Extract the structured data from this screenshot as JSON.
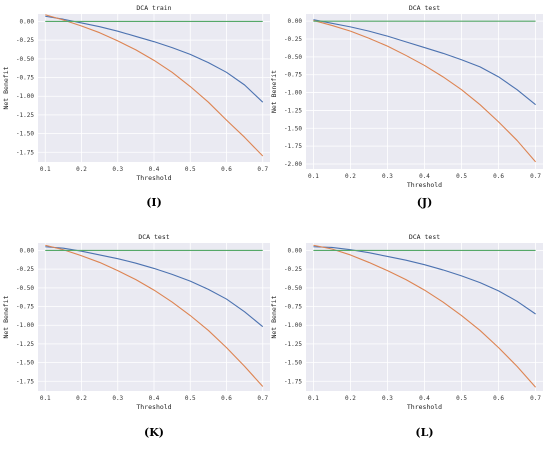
{
  "colors": {
    "background": "#eaeaf2",
    "grid": "#ffffff",
    "model": "#4c72b0",
    "treat_all": "#dd8452",
    "treat_none": "#55a868"
  },
  "chart_data": [
    {
      "type": "line",
      "panel": "(I)",
      "title": "DCA train",
      "xlabel": "Threshold",
      "ylabel": "Net Benefit",
      "xlim": [
        0.08,
        0.72
      ],
      "ylim": [
        -1.88,
        0.1
      ],
      "xticks": [
        "0.1",
        "0.2",
        "0.3",
        "0.4",
        "0.5",
        "0.6",
        "0.7"
      ],
      "yticks": [
        "0.00",
        "-0.25",
        "-0.50",
        "-0.75",
        "-1.00",
        "-1.25",
        "-1.50",
        "-1.75"
      ],
      "grid": true,
      "series": [
        {
          "color": "#4c72b0",
          "x": [
            0.1,
            0.15,
            0.2,
            0.25,
            0.3,
            0.35,
            0.4,
            0.45,
            0.5,
            0.55,
            0.6,
            0.65,
            0.7
          ],
          "y": [
            0.07,
            0.03,
            -0.02,
            -0.07,
            -0.13,
            -0.2,
            -0.27,
            -0.35,
            -0.44,
            -0.55,
            -0.68,
            -0.85,
            -1.08
          ]
        },
        {
          "color": "#dd8452",
          "x": [
            0.1,
            0.15,
            0.2,
            0.25,
            0.3,
            0.35,
            0.4,
            0.45,
            0.5,
            0.55,
            0.6,
            0.65,
            0.7
          ],
          "y": [
            0.09,
            0.02,
            -0.06,
            -0.15,
            -0.26,
            -0.38,
            -0.52,
            -0.68,
            -0.87,
            -1.08,
            -1.32,
            -1.55,
            -1.8
          ]
        },
        {
          "color": "#55a868",
          "x": [
            0.1,
            0.7
          ],
          "y": [
            0,
            0
          ]
        }
      ]
    },
    {
      "type": "line",
      "panel": "(J)",
      "title": "DCA test",
      "xlabel": "Threshold",
      "ylabel": "Net Benefit",
      "xlim": [
        0.08,
        0.72
      ],
      "ylim": [
        -2.07,
        0.1
      ],
      "xticks": [
        "0.1",
        "0.2",
        "0.3",
        "0.4",
        "0.5",
        "0.6",
        "0.7"
      ],
      "yticks": [
        "0.00",
        "-0.25",
        "-0.50",
        "-0.75",
        "-1.00",
        "-1.25",
        "-1.50",
        "-1.75",
        "-2.00"
      ],
      "grid": true,
      "series": [
        {
          "color": "#4c72b0",
          "x": [
            0.1,
            0.15,
            0.2,
            0.25,
            0.3,
            0.35,
            0.4,
            0.45,
            0.5,
            0.55,
            0.6,
            0.65,
            0.7
          ],
          "y": [
            0.02,
            -0.03,
            -0.08,
            -0.14,
            -0.21,
            -0.29,
            -0.37,
            -0.45,
            -0.54,
            -0.64,
            -0.78,
            -0.96,
            -1.17
          ]
        },
        {
          "color": "#dd8452",
          "x": [
            0.1,
            0.15,
            0.2,
            0.25,
            0.3,
            0.35,
            0.4,
            0.45,
            0.5,
            0.55,
            0.6,
            0.65,
            0.7
          ],
          "y": [
            0.01,
            -0.06,
            -0.14,
            -0.24,
            -0.35,
            -0.48,
            -0.62,
            -0.78,
            -0.96,
            -1.17,
            -1.41,
            -1.67,
            -1.97
          ]
        },
        {
          "color": "#55a868",
          "x": [
            0.1,
            0.7
          ],
          "y": [
            0,
            0
          ]
        }
      ]
    },
    {
      "type": "line",
      "panel": "(K)",
      "title": "DCA test",
      "xlabel": "Threshold",
      "ylabel": "Net Benefit",
      "xlim": [
        0.08,
        0.72
      ],
      "ylim": [
        -1.88,
        0.1
      ],
      "xticks": [
        "0.1",
        "0.2",
        "0.3",
        "0.4",
        "0.5",
        "0.6",
        "0.7"
      ],
      "yticks": [
        "0.00",
        "-0.25",
        "-0.50",
        "-0.75",
        "-1.00",
        "-1.25",
        "-1.50",
        "-1.75"
      ],
      "grid": true,
      "series": [
        {
          "color": "#4c72b0",
          "x": [
            0.1,
            0.15,
            0.2,
            0.25,
            0.3,
            0.35,
            0.4,
            0.45,
            0.5,
            0.55,
            0.6,
            0.65,
            0.7
          ],
          "y": [
            0.05,
            0.03,
            -0.01,
            -0.06,
            -0.11,
            -0.17,
            -0.24,
            -0.32,
            -0.41,
            -0.52,
            -0.65,
            -0.82,
            -1.02
          ]
        },
        {
          "color": "#dd8452",
          "x": [
            0.1,
            0.15,
            0.2,
            0.25,
            0.3,
            0.35,
            0.4,
            0.45,
            0.5,
            0.55,
            0.6,
            0.65,
            0.7
          ],
          "y": [
            0.07,
            0.01,
            -0.07,
            -0.16,
            -0.27,
            -0.39,
            -0.53,
            -0.69,
            -0.87,
            -1.07,
            -1.3,
            -1.55,
            -1.82
          ]
        },
        {
          "color": "#55a868",
          "x": [
            0.1,
            0.7
          ],
          "y": [
            0,
            0
          ]
        }
      ]
    },
    {
      "type": "line",
      "panel": "(L)",
      "title": "DCA test",
      "xlabel": "Threshold",
      "ylabel": "Net Benefit",
      "xlim": [
        0.08,
        0.72
      ],
      "ylim": [
        -1.88,
        0.1
      ],
      "xticks": [
        "0.1",
        "0.2",
        "0.3",
        "0.4",
        "0.5",
        "0.6",
        "0.7"
      ],
      "yticks": [
        "0.00",
        "-0.25",
        "-0.50",
        "-0.75",
        "-1.00",
        "-1.25",
        "-1.50",
        "-1.75"
      ],
      "grid": true,
      "series": [
        {
          "color": "#4c72b0",
          "x": [
            0.1,
            0.15,
            0.2,
            0.25,
            0.3,
            0.35,
            0.4,
            0.45,
            0.5,
            0.55,
            0.6,
            0.65,
            0.7
          ],
          "y": [
            0.05,
            0.04,
            0.01,
            -0.03,
            -0.08,
            -0.13,
            -0.19,
            -0.26,
            -0.34,
            -0.43,
            -0.54,
            -0.68,
            -0.85
          ]
        },
        {
          "color": "#dd8452",
          "x": [
            0.1,
            0.15,
            0.2,
            0.25,
            0.3,
            0.35,
            0.4,
            0.45,
            0.5,
            0.55,
            0.6,
            0.65,
            0.7
          ],
          "y": [
            0.07,
            0.02,
            -0.06,
            -0.16,
            -0.27,
            -0.39,
            -0.53,
            -0.69,
            -0.87,
            -1.07,
            -1.3,
            -1.55,
            -1.83
          ]
        },
        {
          "color": "#55a868",
          "x": [
            0.1,
            0.7
          ],
          "y": [
            0,
            0
          ]
        }
      ]
    }
  ]
}
